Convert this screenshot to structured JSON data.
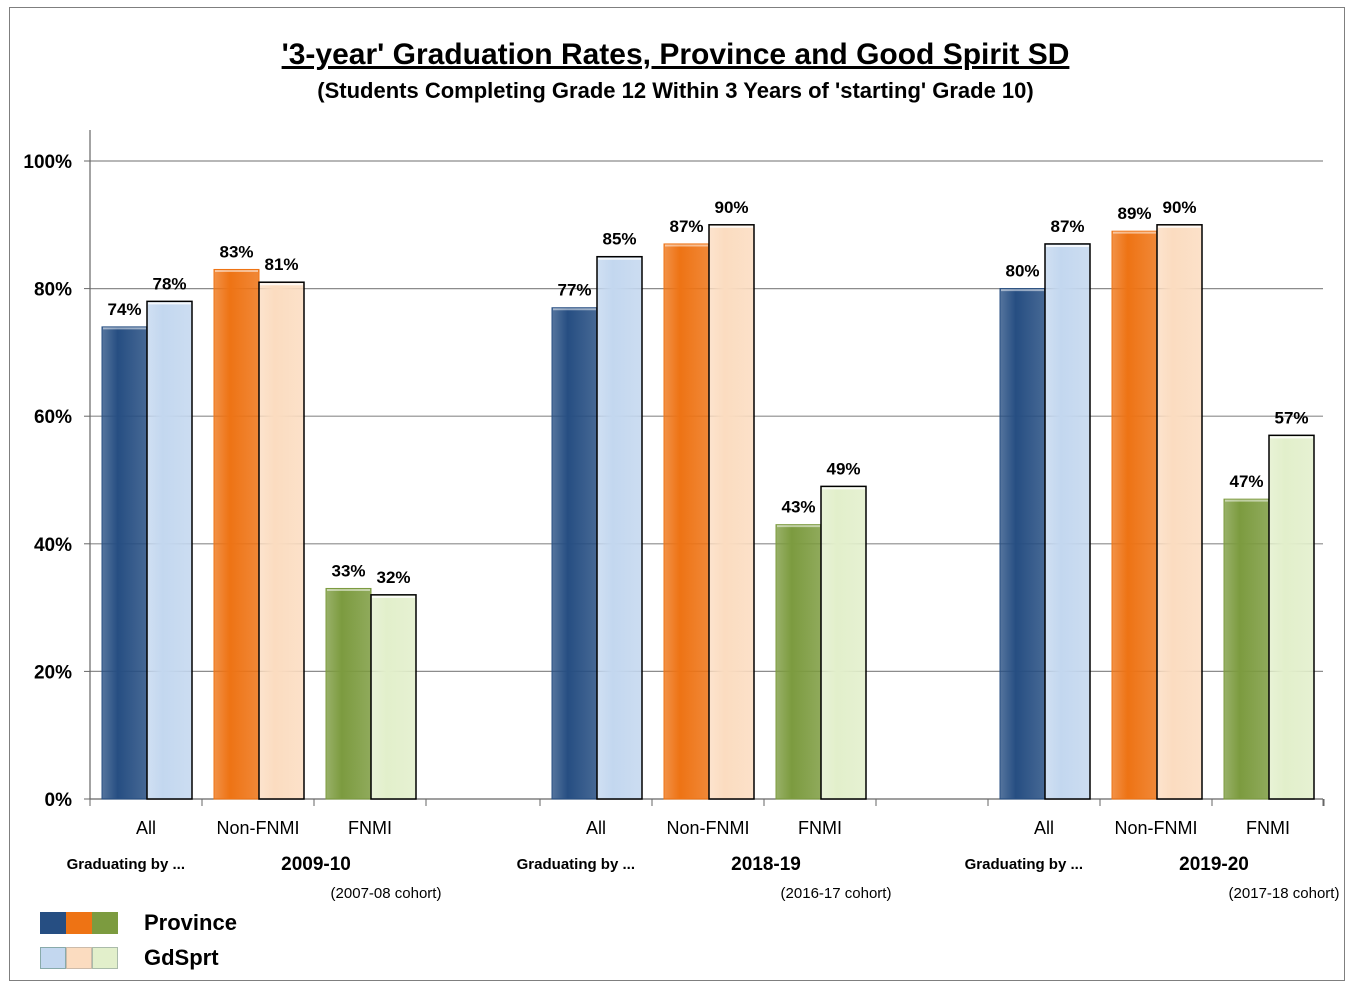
{
  "chart_data": {
    "type": "bar",
    "title": "'3-year' Graduation Rates, Province and Good Spirit SD",
    "subtitle": "(Students Completing Grade 12 Within 3 Years of 'starting' Grade 10)",
    "ylim": [
      0,
      100
    ],
    "y_ticks": [
      "0%",
      "20%",
      "40%",
      "60%",
      "80%",
      "100%"
    ],
    "grid": true,
    "categories": [
      "All",
      "Non-FNMI",
      "FNMI"
    ],
    "group_prefix": "Graduating by ...",
    "groups": [
      {
        "year": "2009-10",
        "cohort": "(2007-08 cohort)",
        "bars": [
          {
            "category": "All",
            "province": 74,
            "gdsprt": 78
          },
          {
            "category": "Non-FNMI",
            "province": 83,
            "gdsprt": 81
          },
          {
            "category": "FNMI",
            "province": 33,
            "gdsprt": 32
          }
        ]
      },
      {
        "year": "2018-19",
        "cohort": "(2016-17 cohort)",
        "bars": [
          {
            "category": "All",
            "province": 77,
            "gdsprt": 85
          },
          {
            "category": "Non-FNMI",
            "province": 87,
            "gdsprt": 90
          },
          {
            "category": "FNMI",
            "province": 43,
            "gdsprt": 49
          }
        ]
      },
      {
        "year": "2019-20",
        "cohort": "(2017-18 cohort)",
        "bars": [
          {
            "category": "All",
            "province": 80,
            "gdsprt": 87
          },
          {
            "category": "Non-FNMI",
            "province": 89,
            "gdsprt": 90
          },
          {
            "category": "FNMI",
            "province": 47,
            "gdsprt": 57
          }
        ]
      }
    ],
    "colors": {
      "All": {
        "province": "#264e82",
        "gdsprt": "#c3d7ef"
      },
      "Non-FNMI": {
        "province": "#ee7314",
        "gdsprt": "#fbdcc0"
      },
      "FNMI": {
        "province": "#7c9b3f",
        "gdsprt": "#e2efcb"
      }
    }
  },
  "legend": {
    "province": "Province",
    "gdsprt": "GdSprt"
  }
}
